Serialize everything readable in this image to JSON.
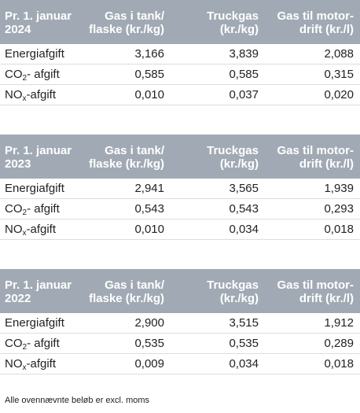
{
  "headers": {
    "col2": [
      "Gas i tank/",
      "flaske (kr./kg)"
    ],
    "col3": [
      "Truckgas",
      "(kr./kg)"
    ],
    "col4": [
      "Gas til motor-",
      "drift (kr./l)"
    ]
  },
  "row_labels": {
    "energy": "Energiafgift",
    "co2_main": "CO",
    "co2_sub": "2",
    "co2_rest": "- afgift",
    "nox_main": "NO",
    "nox_sub": "x",
    "nox_rest": "-afgift"
  },
  "tables": [
    {
      "period": [
        "Pr. 1. januar",
        "2024"
      ],
      "rows": [
        {
          "gas_tank": "3,166",
          "truckgas": "3,839",
          "motor": "2,088"
        },
        {
          "gas_tank": "0,585",
          "truckgas": "0,585",
          "motor": "0,315"
        },
        {
          "gas_tank": "0,010",
          "truckgas": "0,037",
          "motor": "0,020"
        }
      ]
    },
    {
      "period": [
        "Pr. 1. januar",
        "2023"
      ],
      "rows": [
        {
          "gas_tank": "2,941",
          "truckgas": "3,565",
          "motor": "1,939"
        },
        {
          "gas_tank": "0,543",
          "truckgas": "0,543",
          "motor": "0,293"
        },
        {
          "gas_tank": "0,010",
          "truckgas": "0,034",
          "motor": "0,018"
        }
      ]
    },
    {
      "period": [
        "Pr. 1. januar",
        "2022"
      ],
      "rows": [
        {
          "gas_tank": "2,900",
          "truckgas": "3,515",
          "motor": "1,912"
        },
        {
          "gas_tank": "0,535",
          "truckgas": "0,535",
          "motor": "0,289"
        },
        {
          "gas_tank": "0,009",
          "truckgas": "0,034",
          "motor": "0,018"
        }
      ]
    }
  ],
  "footnote": "Alle ovennævnte beløb er excl. moms",
  "colors": {
    "header_bg": "#a1aab4",
    "header_text": "#ffffff",
    "row_divider": "#dddddd"
  }
}
